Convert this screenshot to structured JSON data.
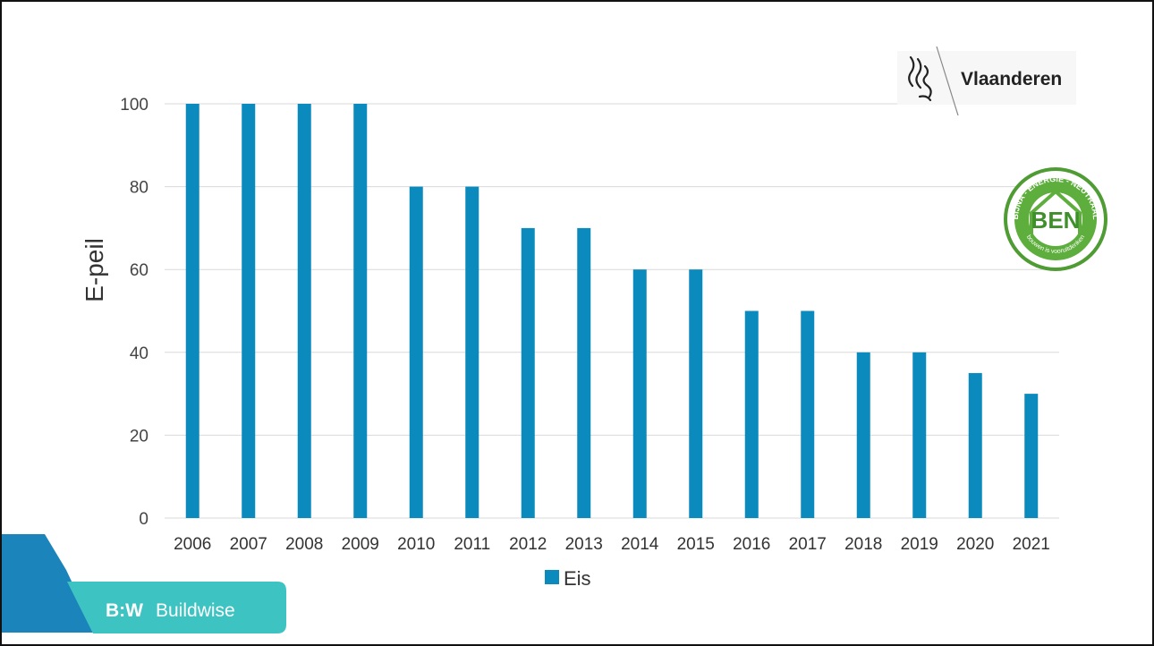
{
  "colors": {
    "bar": "#0A8ABD",
    "grid": "#D9D9D9",
    "buildwise_dark": "#1B84BB",
    "buildwise_teal": "#3DC4C2",
    "ben_green": "#5DAE3C"
  },
  "logos": {
    "vlaanderen": {
      "text": "Vlaanderen",
      "icon": "lion-icon"
    },
    "ben_badge": {
      "main": "BEN",
      "arc_text": "BIJNA - ENERGIE - NEUTRAAL",
      "bottom_text": "bouwen is vooruitdenken"
    },
    "buildwise": {
      "mark": "B:W",
      "text": "Buildwise"
    }
  },
  "chart_data": {
    "type": "bar",
    "categories": [
      "2006",
      "2007",
      "2008",
      "2009",
      "2010",
      "2011",
      "2012",
      "2013",
      "2014",
      "2015",
      "2016",
      "2017",
      "2018",
      "2019",
      "2020",
      "2021"
    ],
    "series": [
      {
        "name": "Eis",
        "values": [
          100,
          100,
          100,
          100,
          80,
          80,
          70,
          70,
          60,
          60,
          50,
          50,
          40,
          40,
          35,
          30
        ]
      }
    ],
    "title": "",
    "xlabel": "",
    "ylabel": "E-peil",
    "ylim": [
      0,
      100
    ],
    "yticks": [
      0,
      20,
      40,
      60,
      80,
      100
    ],
    "grid": true,
    "legend": "bottom-center"
  }
}
